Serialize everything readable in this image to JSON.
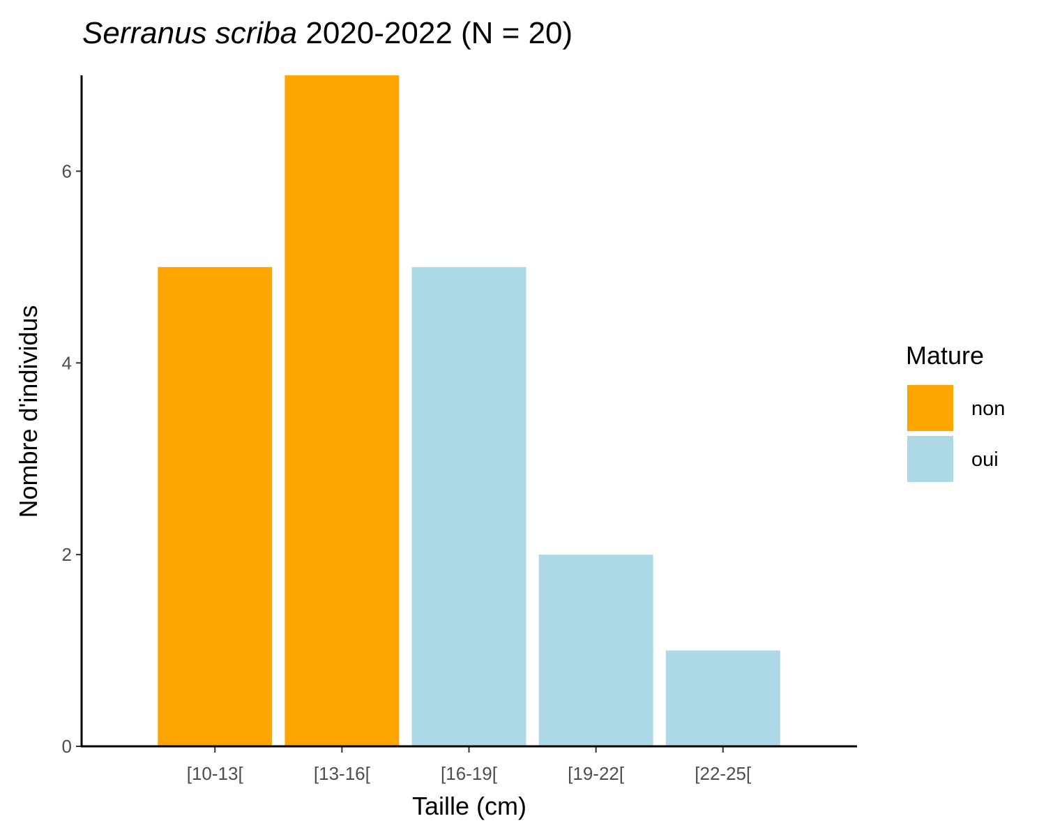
{
  "chart_data": {
    "type": "bar",
    "title_italic": "Serranus scriba",
    "title_rest": " 2020-2022 (N = 20)",
    "xlabel": "Taille (cm)",
    "ylabel": "Nombre d'individus",
    "categories": [
      "[10-13[",
      "[13-16[",
      "[16-19[",
      "[19-22[",
      "[22-25["
    ],
    "values": [
      5,
      7,
      5,
      2,
      1
    ],
    "mature": [
      "non",
      "non",
      "oui",
      "oui",
      "oui"
    ],
    "ylim": [
      0,
      7
    ],
    "yticks": [
      0,
      2,
      4,
      6
    ],
    "grid": false,
    "legend": {
      "title": "Mature",
      "position": "right",
      "items": [
        {
          "key": "non",
          "label": "non",
          "color": "#FFA500"
        },
        {
          "key": "oui",
          "label": "oui",
          "color": "#ADD8E6"
        }
      ]
    }
  }
}
